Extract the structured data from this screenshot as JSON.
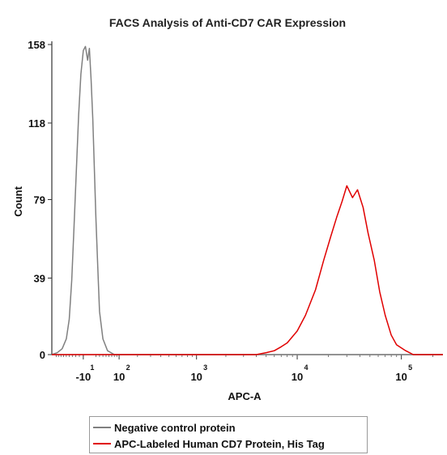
{
  "chart_data": {
    "type": "area",
    "title": "FACS Analysis of Anti-CD7 CAR Expression",
    "xlabel": "APC-A",
    "ylabel": "Count",
    "x_scale": "biexponential",
    "y_ticks": [
      "158",
      "118",
      "79",
      "39",
      "0"
    ],
    "y_tick_values": [
      158,
      118,
      79,
      39,
      0
    ],
    "ylim": [
      0,
      158
    ],
    "x_ticks": [
      {
        "base": "-10",
        "exp": "1",
        "value": -10
      },
      {
        "base": "10",
        "exp": "2",
        "value": 100
      },
      {
        "base": "10",
        "exp": "3",
        "value": 1000
      },
      {
        "base": "10",
        "exp": "4",
        "value": 10000
      },
      {
        "base": "10",
        "exp": "5",
        "value": 100000
      }
    ],
    "xlim": [
      -120,
      250000
    ],
    "legend_position": "bottom",
    "series": [
      {
        "name": "Negative control protein",
        "color": "#808080",
        "x": [
          -120,
          -95,
          -75,
          -60,
          -50,
          -42,
          -35,
          -28,
          -22,
          -16,
          -10,
          -5,
          0,
          4,
          8,
          12,
          16,
          20,
          25,
          30,
          40,
          55,
          80,
          130,
          200,
          300,
          500,
          1000,
          10000,
          250000
        ],
        "y": [
          0,
          1,
          3,
          8,
          18,
          38,
          65,
          95,
          122,
          143,
          155,
          157,
          150,
          156,
          140,
          120,
          95,
          70,
          45,
          22,
          8,
          2,
          0,
          0,
          0,
          0,
          0,
          0,
          0,
          0
        ]
      },
      {
        "name": "APC-Labeled Human CD7 Protein, His Tag",
        "color": "#e00000",
        "x": [
          -120,
          1000,
          3000,
          4000,
          5000,
          6000,
          7000,
          8000,
          10000,
          12000,
          15000,
          18000,
          21000,
          24000,
          27000,
          30000,
          34000,
          38000,
          43000,
          48000,
          55000,
          62000,
          70000,
          80000,
          90000,
          110000,
          130000,
          160000,
          250000
        ],
        "y": [
          0,
          0,
          0,
          0,
          1,
          2,
          4,
          6,
          12,
          20,
          33,
          48,
          60,
          70,
          78,
          86,
          80,
          84,
          75,
          62,
          48,
          32,
          20,
          10,
          5,
          2,
          0,
          0,
          0
        ]
      }
    ]
  }
}
